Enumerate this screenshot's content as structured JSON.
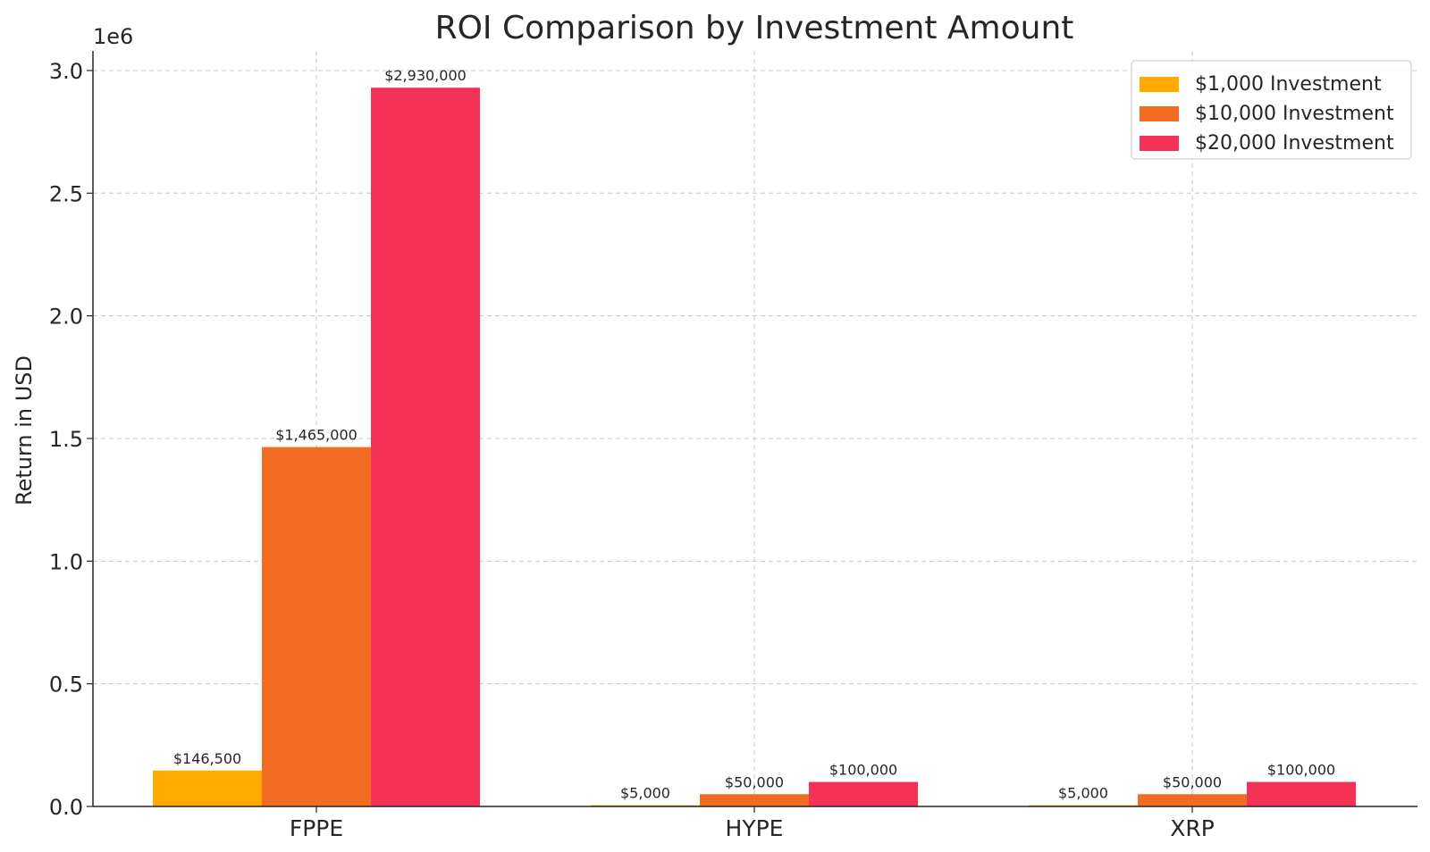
{
  "chart_data": {
    "type": "bar",
    "title": "ROI Comparison by Investment Amount",
    "xlabel": "",
    "ylabel": "Return in USD",
    "y_offset_label": "1e6",
    "ylim": [
      0,
      3080000
    ],
    "yticks": [
      0,
      500000,
      1000000,
      1500000,
      2000000,
      2500000,
      3000000
    ],
    "ytick_labels": [
      "0.0",
      "0.5",
      "1.0",
      "1.5",
      "2.0",
      "2.5",
      "3.0"
    ],
    "grid": true,
    "legend_position": "top-right",
    "categories": [
      "FPPE",
      "HYPE",
      "XRP"
    ],
    "series": [
      {
        "name": "$1,000 Investment",
        "color": "#FFAA00",
        "values": [
          146500,
          5000,
          5000
        ],
        "labels": [
          "$146,500",
          "$5,000",
          "$5,000"
        ]
      },
      {
        "name": "$10,000 Investment",
        "color": "#F26B22",
        "values": [
          1465000,
          50000,
          50000
        ],
        "labels": [
          "$1,465,000",
          "$50,000",
          "$50,000"
        ]
      },
      {
        "name": "$20,000 Investment",
        "color": "#F43157",
        "values": [
          2930000,
          100000,
          100000
        ],
        "labels": [
          "$2,930,000",
          "$100,000",
          "$100,000"
        ]
      }
    ]
  }
}
